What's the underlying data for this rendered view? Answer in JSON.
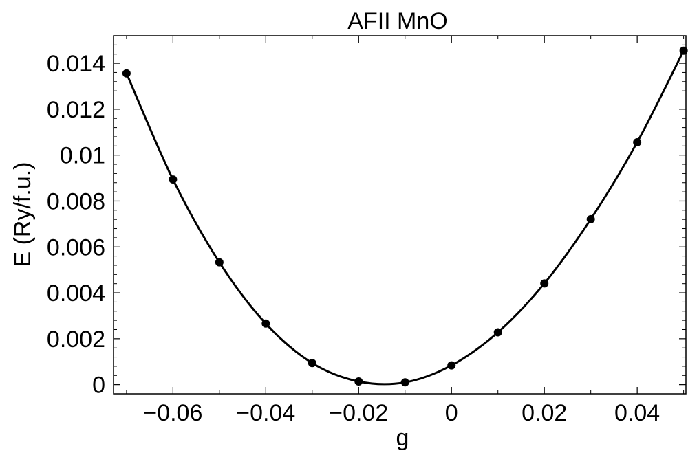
{
  "chart_data": {
    "type": "scatter",
    "title": "AFII MnO",
    "xlabel": "g",
    "ylabel": "E (Ry/f.u.)",
    "xlim": [
      -0.0728,
      0.0505
    ],
    "ylim": [
      -0.0004,
      0.0152
    ],
    "x_ticks": [
      -0.06,
      -0.04,
      -0.02,
      0,
      0.02,
      0.04
    ],
    "x_tick_labels": [
      "−0.06",
      "−0.04",
      "−0.02",
      "0",
      "0.02",
      "0.04"
    ],
    "y_ticks": [
      0,
      0.002,
      0.004,
      0.006,
      0.008,
      0.01,
      0.012,
      0.014
    ],
    "y_tick_labels": [
      "0",
      "0.002",
      "0.004",
      "0.006",
      "0.008",
      "0.01",
      "0.012",
      "0.014"
    ],
    "grid": false,
    "series": [
      {
        "x": [
          -0.07,
          -0.06,
          -0.05,
          -0.04,
          -0.03,
          -0.02,
          -0.01,
          0,
          0.01,
          0.02,
          0.03,
          0.04,
          0.05
        ],
        "y": [
          0.01356,
          0.00894,
          0.00533,
          0.00266,
          0.00094,
          0.00014,
          0.0001,
          0.00084,
          0.00228,
          0.00441,
          0.00721,
          0.01056,
          0.01455
        ],
        "marker": "filled-circle",
        "line": "smooth",
        "color": "#000000"
      }
    ]
  }
}
